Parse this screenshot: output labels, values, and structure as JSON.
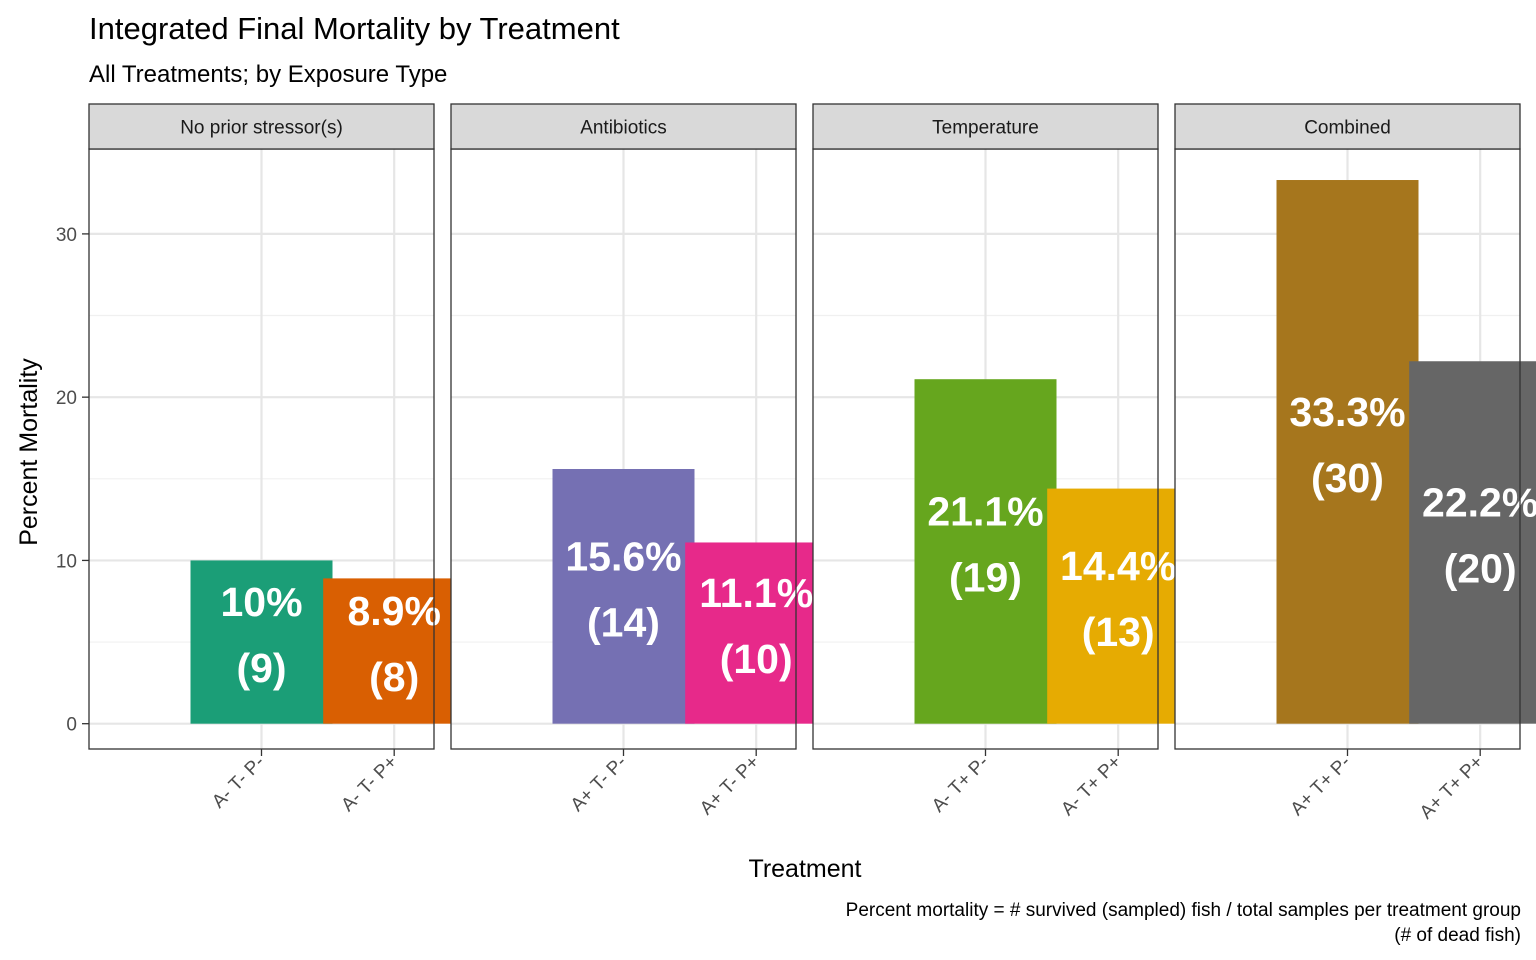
{
  "chart_data": {
    "type": "bar",
    "title": "Integrated Final Mortality by Treatment",
    "subtitle": "All Treatments; by Exposure Type",
    "xlabel": "Treatment",
    "ylabel": "Percent Mortality",
    "caption_lines": [
      "Percent mortality = # survived (sampled) fish / total samples per treatment group",
      "(# of dead fish)"
    ],
    "ylim": [
      -1.55,
      35.2
    ],
    "y_ticks": [
      0,
      10,
      20,
      30
    ],
    "y_tick_labels": [
      "0",
      "10",
      "20",
      "30"
    ],
    "grid": true,
    "legend": "none",
    "facets": [
      {
        "name": "No prior stressor(s)",
        "bars": [
          {
            "category": "A- T- P-",
            "value": 10.0,
            "label_pct": "10%",
            "label_n": "(9)",
            "color": "#1b9e77"
          },
          {
            "category": "A- T- P+",
            "value": 8.9,
            "label_pct": "8.9%",
            "label_n": "(8)",
            "color": "#d95f02"
          }
        ]
      },
      {
        "name": "Antibiotics",
        "bars": [
          {
            "category": "A+ T- P-",
            "value": 15.6,
            "label_pct": "15.6%",
            "label_n": "(14)",
            "color": "#7570b3"
          },
          {
            "category": "A+ T- P+",
            "value": 11.1,
            "label_pct": "11.1%",
            "label_n": "(10)",
            "color": "#e7298a"
          }
        ]
      },
      {
        "name": "Temperature",
        "bars": [
          {
            "category": "A- T+ P-",
            "value": 21.1,
            "label_pct": "21.1%",
            "label_n": "(19)",
            "color": "#66a61e"
          },
          {
            "category": "A- T+ P+",
            "value": 14.4,
            "label_pct": "14.4%",
            "label_n": "(13)",
            "color": "#e6ab02"
          }
        ]
      },
      {
        "name": "Combined",
        "bars": [
          {
            "category": "A+ T+ P-",
            "value": 33.3,
            "label_pct": "33.3%",
            "label_n": "(30)",
            "color": "#a6761d"
          },
          {
            "category": "A+ T+ P+",
            "value": 22.2,
            "label_pct": "22.2%",
            "label_n": "(20)",
            "color": "#666666"
          }
        ]
      }
    ]
  }
}
